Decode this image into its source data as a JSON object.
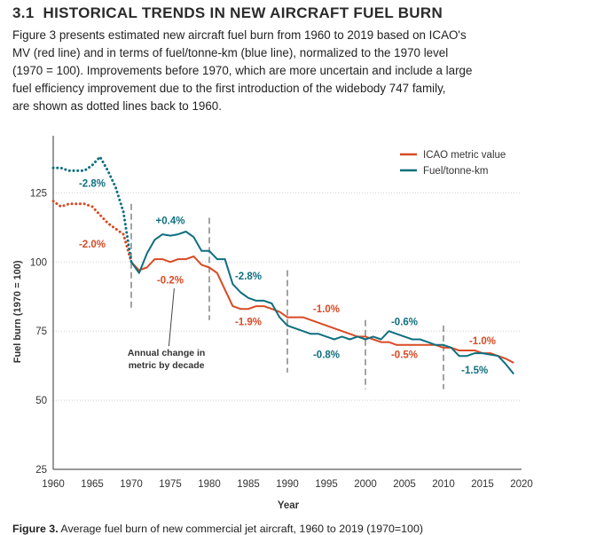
{
  "section": {
    "number": "3.1",
    "title": "HISTORICAL TRENDS IN NEW AIRCRAFT FUEL BURN"
  },
  "intro_lines": [
    "Figure 3 presents estimated new aircraft fuel burn from 1960 to 2019 based on ICAO's",
    "MV (red line) and in terms of fuel/tonne-km (blue line), normalized to the 1970 level",
    "(1970 = 100). Improvements before 1970, which are more uncertain and include a large",
    "fuel efficiency improvement due to the first introduction of the widebody 747 family,",
    "are shown as dotted lines back to 1960."
  ],
  "caption": {
    "label": "Figure 3.",
    "text": " Average fuel burn of new commercial jet aircraft, 1960 to 2019 (1970=100)"
  },
  "colors": {
    "red": "#d84a25",
    "blue": "#0f6f7f",
    "grid": "#cfcfcf",
    "divider": "#8c8c8c",
    "axis": "#333333"
  },
  "chart_data": {
    "type": "line",
    "title": "",
    "xlabel": "Year",
    "ylabel": "Fuel burn (1970 = 100)",
    "xlim": [
      1960,
      2020
    ],
    "ylim": [
      25,
      145
    ],
    "xticks": [
      "1960",
      "1965",
      "1970",
      "1975",
      "1980",
      "1985",
      "1990",
      "1995",
      "2000",
      "2005",
      "2010",
      "2015",
      "2020"
    ],
    "yticks": [
      "25",
      "50",
      "75",
      "100",
      "125"
    ],
    "grid": "horizontal",
    "legend": {
      "position": "top-right",
      "entries": [
        {
          "name": "ICAO metric value",
          "color_key": "red"
        },
        {
          "name": "Fuel/tonne-km",
          "color_key": "blue"
        }
      ]
    },
    "decade_dividers": [
      1970,
      1980,
      1990,
      2000,
      2010
    ],
    "series": [
      {
        "name": "ICAO metric value",
        "color_key": "red",
        "dotted_until": 1970,
        "x": [
          1960,
          1961,
          1962,
          1963,
          1964,
          1965,
          1966,
          1967,
          1968,
          1969,
          1970,
          1971,
          1972,
          1973,
          1974,
          1975,
          1976,
          1977,
          1978,
          1979,
          1980,
          1981,
          1982,
          1983,
          1984,
          1985,
          1986,
          1987,
          1988,
          1989,
          1990,
          1991,
          1992,
          1993,
          1994,
          1995,
          1996,
          1997,
          1998,
          1999,
          2000,
          2001,
          2002,
          2003,
          2004,
          2005,
          2006,
          2007,
          2008,
          2009,
          2010,
          2011,
          2012,
          2013,
          2014,
          2015,
          2016,
          2017,
          2018,
          2019
        ],
        "values": [
          122,
          120,
          121,
          121,
          121,
          120,
          117,
          114,
          112,
          110,
          100,
          97,
          98,
          101,
          101,
          100,
          101,
          101,
          102,
          99,
          98,
          96,
          90,
          84,
          83,
          83,
          84,
          84,
          83,
          82,
          80,
          80,
          80,
          79,
          78,
          77,
          76,
          75,
          74,
          73,
          73,
          72,
          71,
          71,
          70,
          70,
          70,
          70,
          70,
          70,
          69,
          69,
          68,
          68,
          68,
          67,
          67,
          66,
          65,
          63.5
        ]
      },
      {
        "name": "Fuel/tonne-km",
        "color_key": "blue",
        "dotted_until": 1970,
        "x": [
          1960,
          1961,
          1962,
          1963,
          1964,
          1965,
          1966,
          1967,
          1968,
          1969,
          1970,
          1971,
          1972,
          1973,
          1974,
          1975,
          1976,
          1977,
          1978,
          1979,
          1980,
          1981,
          1982,
          1983,
          1984,
          1985,
          1986,
          1987,
          1988,
          1989,
          1990,
          1991,
          1992,
          1993,
          1994,
          1995,
          1996,
          1997,
          1998,
          1999,
          2000,
          2001,
          2002,
          2003,
          2004,
          2005,
          2006,
          2007,
          2008,
          2009,
          2010,
          2011,
          2012,
          2013,
          2014,
          2015,
          2016,
          2017,
          2018,
          2019
        ],
        "values": [
          134,
          134,
          133,
          133,
          133,
          135,
          138,
          133,
          127,
          118,
          100,
          96,
          103,
          108,
          110,
          109.5,
          110,
          111,
          109,
          104,
          104,
          101,
          101,
          92,
          89,
          87,
          86,
          86,
          85,
          80,
          77,
          76,
          75,
          74,
          74,
          73,
          72,
          73,
          72,
          73,
          72,
          73,
          72,
          75,
          74,
          73,
          72,
          72,
          71,
          70,
          70,
          69,
          66,
          66,
          67,
          67,
          66.5,
          66,
          63,
          59.5
        ]
      }
    ],
    "annotations": [
      {
        "text": "-2.8%",
        "color_key": "blue",
        "x": 1965,
        "y": 128.5
      },
      {
        "text": "-2.0%",
        "color_key": "red",
        "x": 1965,
        "y": 106.5
      },
      {
        "text": "+0.4%",
        "color_key": "blue",
        "x": 1975,
        "y": 115
      },
      {
        "text": "-0.2%",
        "color_key": "red",
        "x": 1975,
        "y": 93.5
      },
      {
        "text": "-2.8%",
        "color_key": "blue",
        "x": 1985,
        "y": 95
      },
      {
        "text": "-1.9%",
        "color_key": "red",
        "x": 1985,
        "y": 78.5
      },
      {
        "text": "-1.0%",
        "color_key": "red",
        "x": 1995,
        "y": 83
      },
      {
        "text": "-0.8%",
        "color_key": "blue",
        "x": 1995,
        "y": 66.5
      },
      {
        "text": "-0.6%",
        "color_key": "blue",
        "x": 2005,
        "y": 78.5
      },
      {
        "text": "-0.5%",
        "color_key": "red",
        "x": 2005,
        "y": 66.5
      },
      {
        "text": "-1.0%",
        "color_key": "red",
        "x": 2015,
        "y": 71.5
      },
      {
        "text": "-1.5%",
        "color_key": "blue",
        "x": 2014,
        "y": 61
      }
    ],
    "callout": {
      "lines": [
        "Annual change in",
        "metric by decade"
      ],
      "x": 1974.5,
      "y": 66,
      "pointer_to": [
        1975.5,
        90.5
      ]
    }
  }
}
